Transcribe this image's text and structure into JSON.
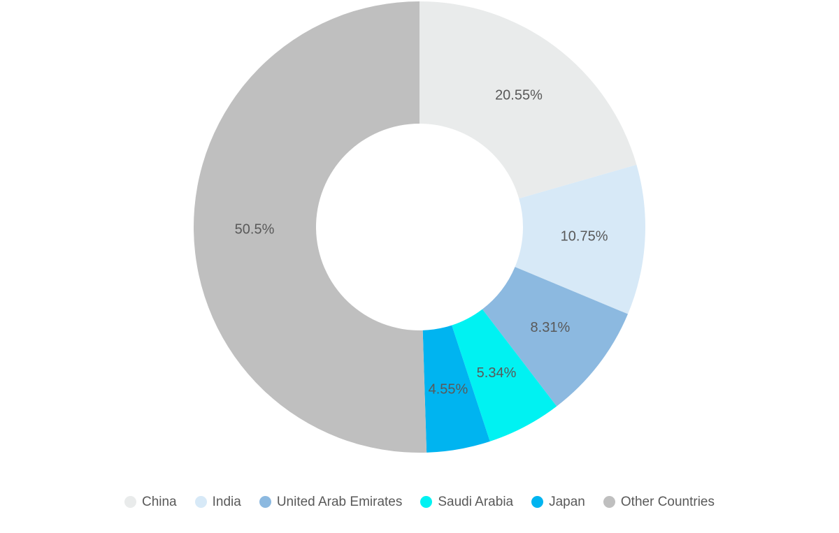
{
  "chart_data": {
    "type": "pie",
    "variant": "donut",
    "title": "",
    "categories": [
      "China",
      "India",
      "United Arab Emirates",
      "Saudi Arabia",
      "Japan",
      "Other Countries"
    ],
    "values": [
      20.55,
      10.75,
      8.31,
      5.34,
      4.55,
      50.5
    ],
    "value_labels": [
      "20.55%",
      "10.75%",
      "8.31%",
      "5.34%",
      "4.55%",
      "50.5%"
    ],
    "colors": [
      "#e9ebeb",
      "#d7e9f7",
      "#8cb9e0",
      "#00f2f2",
      "#00b4f0",
      "#bfbfbf"
    ],
    "start_angle_deg": 0,
    "direction": "clockwise",
    "inner_radius_ratio": 0.458,
    "grid": false,
    "legend_position": "bottom",
    "label_color": "#595959",
    "background_color": "#ffffff"
  }
}
